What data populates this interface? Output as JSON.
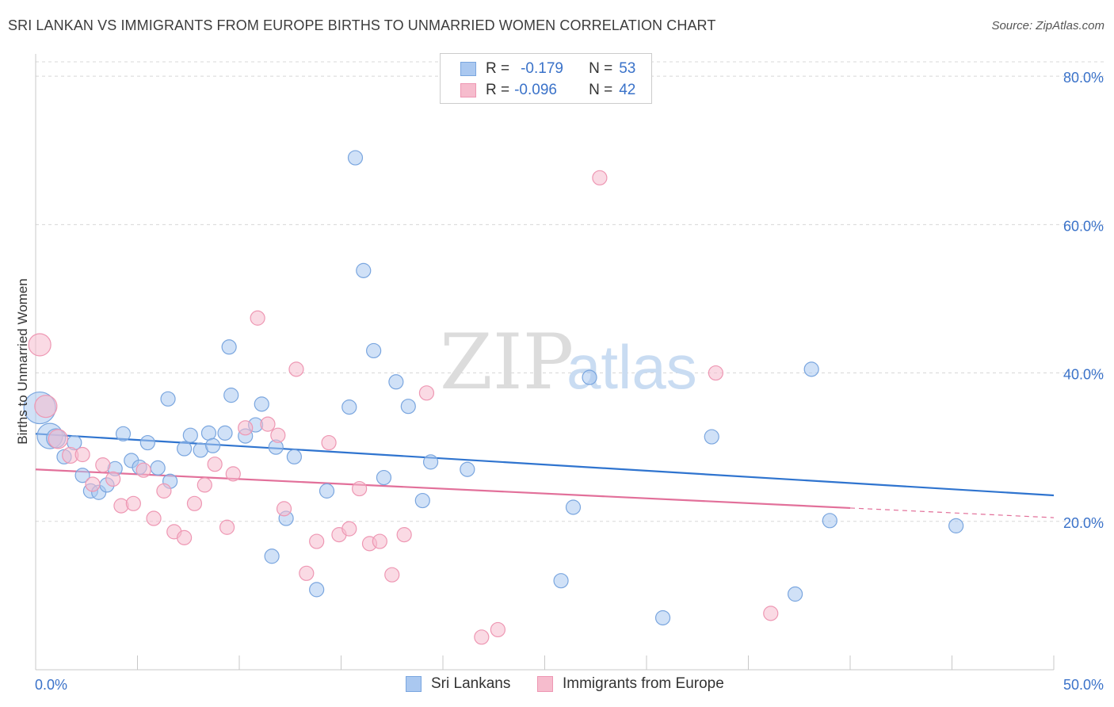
{
  "title": "SRI LANKAN VS IMMIGRANTS FROM EUROPE BIRTHS TO UNMARRIED WOMEN CORRELATION CHART",
  "source": "Source: ZipAtlas.com",
  "watermark": {
    "zip": "ZIP",
    "atlas": "atlas"
  },
  "legend": {
    "r_label": "R =",
    "n_label": "N =",
    "series": [
      {
        "r": "-0.179",
        "n": "53"
      },
      {
        "r": "-0.096",
        "n": "42"
      }
    ]
  },
  "bottom_legend": [
    "Sri Lankans",
    "Immigrants from Europe"
  ],
  "colors": {
    "blue_fill": "#aac8f0",
    "blue_stroke": "#7aa6df",
    "blue_line": "#2f74cf",
    "pink_fill": "#f6bccd",
    "pink_stroke": "#ee97b3",
    "pink_line": "#e2709a",
    "grid": "#d8d8d8",
    "tick_text": "#3a72c9"
  },
  "chart_data": {
    "type": "scatter",
    "title": "SRI LANKAN VS IMMIGRANTS FROM EUROPE BIRTHS TO UNMARRIED WOMEN CORRELATION CHART",
    "xlabel": "",
    "ylabel": "Births to Unmarried Women",
    "xlim": [
      0,
      50
    ],
    "ylim": [
      0,
      83
    ],
    "x_tick_labels": [
      "0.0%",
      "50.0%"
    ],
    "y_ticks": [
      20,
      40,
      60,
      80
    ],
    "y_tick_labels": [
      "20.0%",
      "40.0%",
      "60.0%",
      "80.0%"
    ],
    "grid": true,
    "series": [
      {
        "name": "Sri Lankans",
        "r": -0.179,
        "n": 53,
        "trend": {
          "x": [
            0,
            50
          ],
          "y": [
            31.8,
            23.5
          ],
          "dashed_from": null
        },
        "points": [
          {
            "x": 0.2,
            "y": 35.3,
            "s": 20
          },
          {
            "x": 0.7,
            "y": 31.5,
            "s": 16
          },
          {
            "x": 1.0,
            "y": 31.2,
            "s": 12
          },
          {
            "x": 1.4,
            "y": 28.7,
            "s": 9
          },
          {
            "x": 1.9,
            "y": 30.6,
            "s": 9
          },
          {
            "x": 2.3,
            "y": 26.2,
            "s": 9
          },
          {
            "x": 2.7,
            "y": 24.1,
            "s": 9
          },
          {
            "x": 3.1,
            "y": 23.9,
            "s": 9
          },
          {
            "x": 3.5,
            "y": 24.9,
            "s": 9
          },
          {
            "x": 3.9,
            "y": 27.1,
            "s": 9
          },
          {
            "x": 4.3,
            "y": 31.8,
            "s": 9
          },
          {
            "x": 4.7,
            "y": 28.2,
            "s": 9
          },
          {
            "x": 5.1,
            "y": 27.3,
            "s": 9
          },
          {
            "x": 5.5,
            "y": 30.6,
            "s": 9
          },
          {
            "x": 6.0,
            "y": 27.2,
            "s": 9
          },
          {
            "x": 6.5,
            "y": 36.5,
            "s": 9
          },
          {
            "x": 6.6,
            "y": 25.4,
            "s": 9
          },
          {
            "x": 7.3,
            "y": 29.8,
            "s": 9
          },
          {
            "x": 7.6,
            "y": 31.6,
            "s": 9
          },
          {
            "x": 8.1,
            "y": 29.6,
            "s": 9
          },
          {
            "x": 8.5,
            "y": 31.9,
            "s": 9
          },
          {
            "x": 8.7,
            "y": 30.2,
            "s": 9
          },
          {
            "x": 9.3,
            "y": 31.9,
            "s": 9
          },
          {
            "x": 9.6,
            "y": 37.0,
            "s": 9
          },
          {
            "x": 9.5,
            "y": 43.5,
            "s": 9
          },
          {
            "x": 10.3,
            "y": 31.5,
            "s": 9
          },
          {
            "x": 10.8,
            "y": 33.0,
            "s": 9
          },
          {
            "x": 11.1,
            "y": 35.8,
            "s": 9
          },
          {
            "x": 11.8,
            "y": 30.0,
            "s": 9
          },
          {
            "x": 12.3,
            "y": 20.4,
            "s": 9
          },
          {
            "x": 12.7,
            "y": 28.7,
            "s": 9
          },
          {
            "x": 11.6,
            "y": 15.3,
            "s": 9
          },
          {
            "x": 13.8,
            "y": 10.8,
            "s": 9
          },
          {
            "x": 14.3,
            "y": 24.1,
            "s": 9
          },
          {
            "x": 15.4,
            "y": 35.4,
            "s": 9
          },
          {
            "x": 15.7,
            "y": 69.0,
            "s": 9
          },
          {
            "x": 16.1,
            "y": 53.8,
            "s": 9
          },
          {
            "x": 16.6,
            "y": 43.0,
            "s": 9
          },
          {
            "x": 17.1,
            "y": 25.9,
            "s": 9
          },
          {
            "x": 17.7,
            "y": 38.8,
            "s": 9
          },
          {
            "x": 18.3,
            "y": 35.5,
            "s": 9
          },
          {
            "x": 19.0,
            "y": 22.8,
            "s": 9
          },
          {
            "x": 19.4,
            "y": 28.0,
            "s": 9
          },
          {
            "x": 21.2,
            "y": 27.0,
            "s": 9
          },
          {
            "x": 26.4,
            "y": 21.9,
            "s": 9
          },
          {
            "x": 27.2,
            "y": 39.4,
            "s": 9
          },
          {
            "x": 25.8,
            "y": 12.0,
            "s": 9
          },
          {
            "x": 30.8,
            "y": 7.0,
            "s": 9
          },
          {
            "x": 33.2,
            "y": 31.4,
            "s": 9
          },
          {
            "x": 38.1,
            "y": 40.5,
            "s": 9
          },
          {
            "x": 37.3,
            "y": 10.2,
            "s": 9
          },
          {
            "x": 39.0,
            "y": 20.1,
            "s": 9
          },
          {
            "x": 45.2,
            "y": 19.4,
            "s": 9
          }
        ]
      },
      {
        "name": "Immigrants from Europe",
        "r": -0.096,
        "n": 42,
        "trend": {
          "x": [
            0,
            50
          ],
          "y": [
            27.0,
            20.5
          ],
          "dashed_from": 40
        },
        "points": [
          {
            "x": 0.2,
            "y": 43.8,
            "s": 14
          },
          {
            "x": 0.5,
            "y": 35.5,
            "s": 14
          },
          {
            "x": 1.1,
            "y": 31.1,
            "s": 12
          },
          {
            "x": 1.7,
            "y": 28.9,
            "s": 10
          },
          {
            "x": 2.3,
            "y": 29.0,
            "s": 9
          },
          {
            "x": 2.8,
            "y": 25.0,
            "s": 9
          },
          {
            "x": 3.3,
            "y": 27.6,
            "s": 9
          },
          {
            "x": 3.8,
            "y": 25.7,
            "s": 9
          },
          {
            "x": 4.2,
            "y": 22.1,
            "s": 9
          },
          {
            "x": 4.8,
            "y": 22.4,
            "s": 9
          },
          {
            "x": 5.3,
            "y": 26.9,
            "s": 9
          },
          {
            "x": 5.8,
            "y": 20.4,
            "s": 9
          },
          {
            "x": 6.3,
            "y": 24.1,
            "s": 9
          },
          {
            "x": 6.8,
            "y": 18.6,
            "s": 9
          },
          {
            "x": 7.3,
            "y": 17.8,
            "s": 9
          },
          {
            "x": 7.8,
            "y": 22.4,
            "s": 9
          },
          {
            "x": 8.3,
            "y": 24.9,
            "s": 9
          },
          {
            "x": 8.8,
            "y": 27.7,
            "s": 9
          },
          {
            "x": 9.4,
            "y": 19.2,
            "s": 9
          },
          {
            "x": 9.7,
            "y": 26.4,
            "s": 9
          },
          {
            "x": 10.3,
            "y": 32.6,
            "s": 9
          },
          {
            "x": 10.9,
            "y": 47.4,
            "s": 9
          },
          {
            "x": 11.4,
            "y": 33.1,
            "s": 9
          },
          {
            "x": 11.9,
            "y": 31.6,
            "s": 9
          },
          {
            "x": 12.2,
            "y": 21.7,
            "s": 9
          },
          {
            "x": 12.8,
            "y": 40.5,
            "s": 9
          },
          {
            "x": 13.3,
            "y": 13.0,
            "s": 9
          },
          {
            "x": 13.8,
            "y": 17.3,
            "s": 9
          },
          {
            "x": 14.4,
            "y": 30.6,
            "s": 9
          },
          {
            "x": 14.9,
            "y": 18.2,
            "s": 9
          },
          {
            "x": 15.4,
            "y": 19.0,
            "s": 9
          },
          {
            "x": 15.9,
            "y": 24.4,
            "s": 9
          },
          {
            "x": 16.4,
            "y": 17.0,
            "s": 9
          },
          {
            "x": 16.9,
            "y": 17.3,
            "s": 9
          },
          {
            "x": 17.5,
            "y": 12.8,
            "s": 9
          },
          {
            "x": 18.1,
            "y": 18.2,
            "s": 9
          },
          {
            "x": 19.2,
            "y": 37.3,
            "s": 9
          },
          {
            "x": 21.9,
            "y": 4.4,
            "s": 9
          },
          {
            "x": 22.7,
            "y": 5.4,
            "s": 9
          },
          {
            "x": 27.7,
            "y": 66.3,
            "s": 9
          },
          {
            "x": 33.4,
            "y": 40.0,
            "s": 9
          },
          {
            "x": 36.1,
            "y": 7.6,
            "s": 9
          }
        ]
      }
    ]
  }
}
